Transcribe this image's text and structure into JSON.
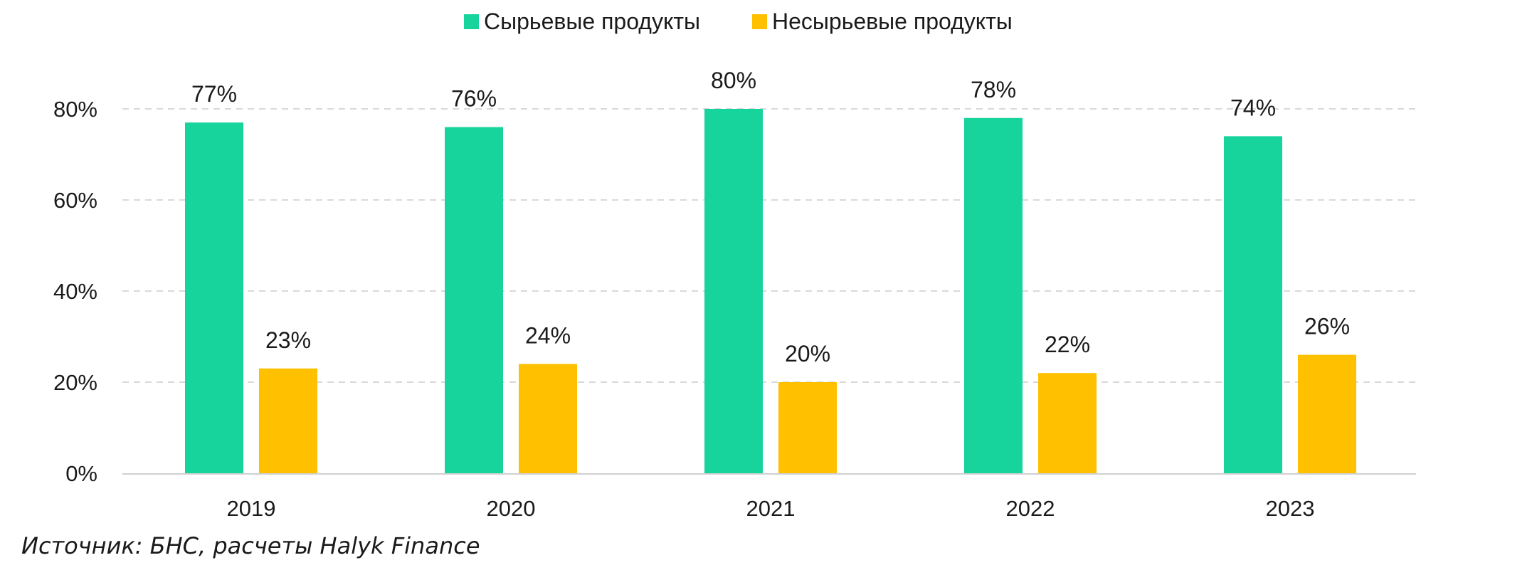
{
  "chart_data": {
    "type": "bar",
    "categories": [
      "2019",
      "2020",
      "2021",
      "2022",
      "2023"
    ],
    "series": [
      {
        "name": "Сырьевые продукты",
        "values": [
          77,
          76,
          80,
          78,
          74
        ],
        "labels": [
          "77%",
          "76%",
          "80%",
          "78%",
          "74%"
        ],
        "color": "#17d49c"
      },
      {
        "name": "Несырьевые продукты",
        "values": [
          23,
          24,
          20,
          22,
          26
        ],
        "labels": [
          "23%",
          "24%",
          "20%",
          "22%",
          "26%"
        ],
        "color": "#ffc000"
      }
    ],
    "yticks": [
      0,
      20,
      40,
      60,
      80
    ],
    "ytick_labels": [
      "0%",
      "20%",
      "40%",
      "60%",
      "80%"
    ],
    "ylim": [
      0,
      80
    ],
    "grid": true,
    "legend_position": "top-center",
    "title": "",
    "xlabel": "",
    "ylabel": ""
  },
  "source": "Источник: БНС, расчеты Halyk Finance"
}
